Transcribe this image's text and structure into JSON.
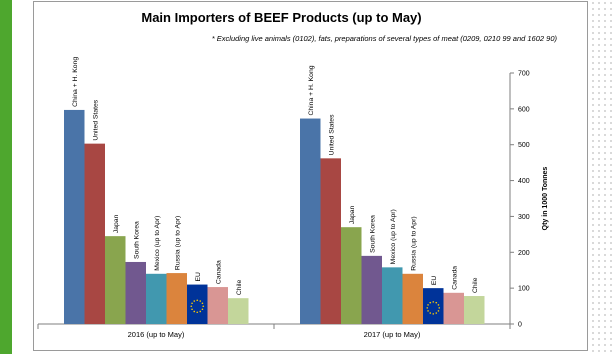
{
  "chart_data": {
    "type": "bar",
    "title": "Main Importers of BEEF Products (up to May)",
    "subtitle": "* Excluding live animals (0102), fats, preparations of several types of meat (0209, 0210 99 and 1602 90)",
    "ylabel": "Qty in 1000 Tonnes",
    "xlabel": "",
    "ylim": [
      0,
      700
    ],
    "yticks": [
      0,
      100,
      200,
      300,
      400,
      500,
      600,
      700
    ],
    "grid": false,
    "groups": [
      "2016 (up to May)",
      "2017 (up to May)"
    ],
    "series": [
      {
        "name": "China + H. Kong",
        "color": "#4a74a8",
        "values": [
          597,
          573
        ]
      },
      {
        "name": "United States",
        "color": "#a84743",
        "values": [
          503,
          462
        ]
      },
      {
        "name": "Japan",
        "color": "#89a54e",
        "values": [
          245,
          270
        ]
      },
      {
        "name": "South Korea",
        "color": "#71588f",
        "values": [
          173,
          190
        ]
      },
      {
        "name": "Mexico (up to Apr)",
        "color": "#4198af",
        "values": [
          140,
          158
        ]
      },
      {
        "name": "Russia (up to Apr)",
        "color": "#db843d",
        "values": [
          142,
          140
        ]
      },
      {
        "name": "EU",
        "color": "#003399",
        "values": [
          110,
          100
        ]
      },
      {
        "name": "Canada",
        "color": "#d99694",
        "values": [
          103,
          87
        ]
      },
      {
        "name": "Chile",
        "color": "#c3d69b",
        "values": [
          72,
          78
        ]
      }
    ]
  },
  "colors": {
    "left_bar": "#4ea72e",
    "frame": "#9a9a9a",
    "axis": "#7f7f7f"
  }
}
